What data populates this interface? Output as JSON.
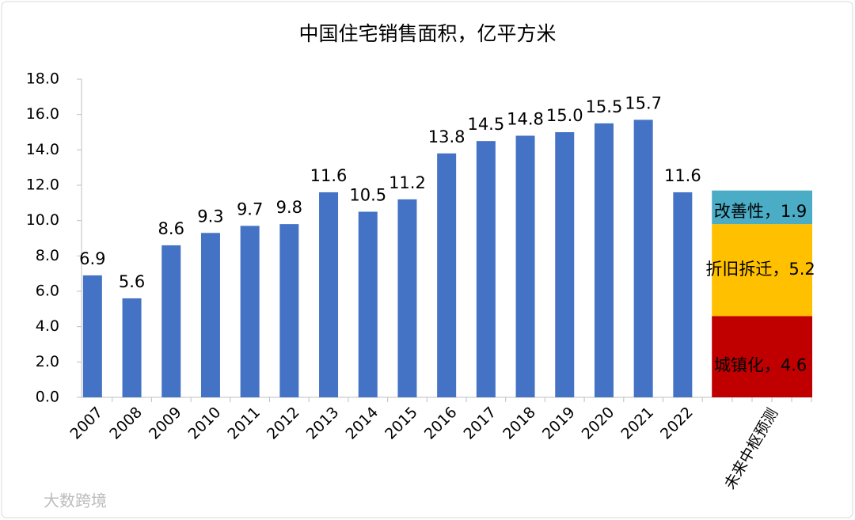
{
  "chart_data": {
    "type": "bar",
    "title": "中国住宅销售面积，亿平方米",
    "categories": [
      "2007",
      "2008",
      "2009",
      "2010",
      "2011",
      "2012",
      "2013",
      "2014",
      "2015",
      "2016",
      "2017",
      "2018",
      "2019",
      "2020",
      "2021",
      "2022"
    ],
    "values": [
      6.9,
      5.6,
      8.6,
      9.3,
      9.7,
      9.8,
      11.6,
      10.5,
      11.2,
      13.8,
      14.5,
      14.8,
      15.0,
      15.5,
      15.7,
      11.6
    ],
    "value_labels": [
      "6.9",
      "5.6",
      "8.6",
      "9.3",
      "9.7",
      "9.8",
      "11.6",
      "10.5",
      "11.2",
      "13.8",
      "14.5",
      "14.8",
      "15.0",
      "15.5",
      "15.7",
      "11.6"
    ],
    "color": "#4472c4",
    "forecast": {
      "category": "未来中枢预测",
      "segments": [
        {
          "value": 4.6,
          "label": "城镇化，4.6",
          "color": "#c00000"
        },
        {
          "value": 5.2,
          "label": "折旧拆迁，5.2",
          "color": "#ffc000"
        },
        {
          "value": 1.9,
          "label": "改善性，1.9",
          "color": "#4bacc6"
        }
      ]
    },
    "ylim": [
      0,
      18
    ],
    "yticks": [
      {
        "value": 0,
        "label": "0.0"
      },
      {
        "value": 2,
        "label": "2.0"
      },
      {
        "value": 4,
        "label": "4.0"
      },
      {
        "value": 6,
        "label": "6.0"
      },
      {
        "value": 8,
        "label": "8.0"
      },
      {
        "value": 10,
        "label": "10.0"
      },
      {
        "value": 12,
        "label": "12.0"
      },
      {
        "value": 14,
        "label": "14.0"
      },
      {
        "value": 16,
        "label": "16.0"
      },
      {
        "value": 18,
        "label": "18.0"
      }
    ]
  },
  "watermark": "大数跨境"
}
